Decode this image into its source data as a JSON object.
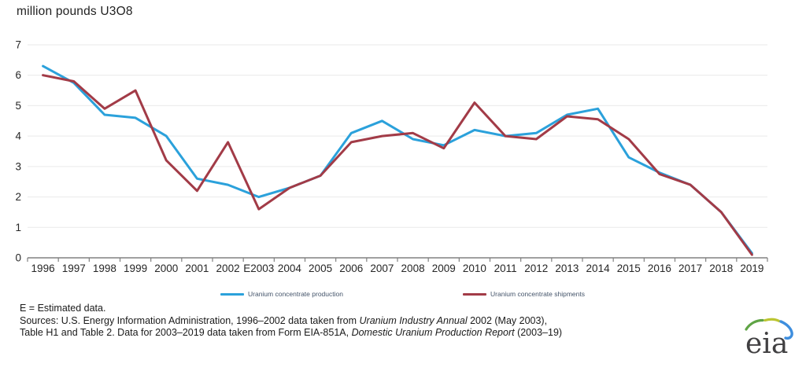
{
  "title": "million pounds U3O8",
  "chart_data": {
    "type": "line",
    "x": [
      "1996",
      "1997",
      "1998",
      "1999",
      "2000",
      "2001",
      "2002",
      "E2003",
      "2004",
      "2005",
      "2006",
      "2007",
      "2008",
      "2009",
      "2010",
      "2011",
      "2012",
      "2013",
      "2014",
      "2015",
      "2016",
      "2017",
      "2018",
      "2019"
    ],
    "series": [
      {
        "name": "Uranium concentrate production",
        "color": "#2BA1DB",
        "values": [
          6.3,
          5.75,
          4.7,
          4.6,
          4.0,
          2.6,
          2.4,
          2.0,
          2.3,
          2.7,
          4.1,
          4.5,
          3.9,
          3.7,
          4.2,
          4.0,
          4.1,
          4.7,
          4.9,
          3.3,
          2.8,
          2.4,
          1.5,
          0.15
        ]
      },
      {
        "name": "Uranium concentrate shipments",
        "color": "#A23B47",
        "values": [
          6.0,
          5.8,
          4.9,
          5.5,
          3.2,
          2.2,
          3.8,
          1.6,
          2.3,
          2.7,
          3.8,
          4.0,
          4.1,
          3.6,
          5.1,
          4.0,
          3.9,
          4.65,
          4.55,
          3.9,
          2.75,
          2.4,
          1.5,
          0.1
        ]
      }
    ],
    "ylabel": "million pounds U3O8",
    "ylim": [
      0,
      7
    ],
    "yticks": [
      0,
      1,
      2,
      3,
      4,
      5,
      6,
      7
    ],
    "grid": true,
    "legend_position": "bottom"
  },
  "colors": {
    "gridline": "#E9E9E9",
    "axis": "#808080",
    "tick_text": "#262626"
  },
  "footer": {
    "estimated_note": "E = Estimated data.",
    "source_line1_segments": [
      {
        "t": "Sources:  U.S. Energy Information Administration, 1996–2002 data taken from ",
        "i": false
      },
      {
        "t": "Uranium Industry Annual",
        "i": true
      },
      {
        "t": " 2002 (May 2003),",
        "i": false
      }
    ],
    "source_line2_segments": [
      {
        "t": "Table H1 and Table 2.  Data for 2003–2019 data taken from Form EIA-851A, ",
        "i": false
      },
      {
        "t": "Domestic Uranium Production Report",
        "i": true
      },
      {
        "t": " (2003–19)",
        "i": false
      }
    ]
  },
  "logo": {
    "text": "eia"
  }
}
